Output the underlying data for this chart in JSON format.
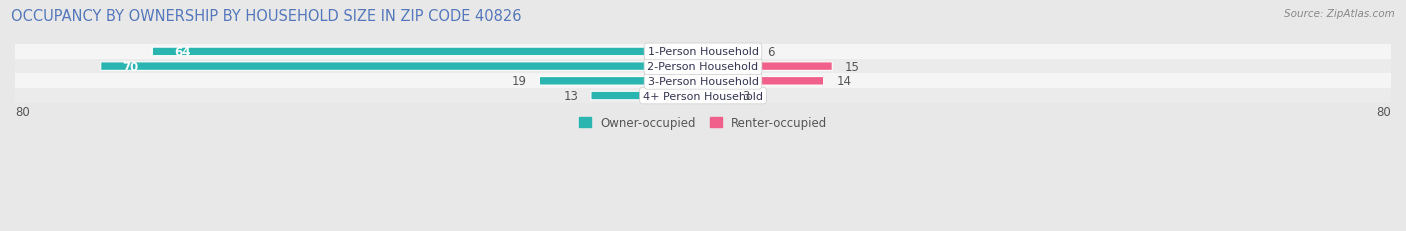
{
  "title": "OCCUPANCY BY OWNERSHIP BY HOUSEHOLD SIZE IN ZIP CODE 40826",
  "source": "Source: ZipAtlas.com",
  "categories": [
    "1-Person Household",
    "2-Person Household",
    "3-Person Household",
    "4+ Person Household"
  ],
  "owner_values": [
    64,
    70,
    19,
    13
  ],
  "renter_values": [
    6,
    15,
    14,
    3
  ],
  "owner_color": "#2bb5b0",
  "renter_color_strong": "#f0608a",
  "renter_color_light": "#f5a8c0",
  "axis_limit": 80,
  "bar_height": 0.52,
  "background_color": "#e8e8e8",
  "row_colors": [
    "#f5f5f5",
    "#e8e8e8"
  ],
  "label_fontsize": 8.5,
  "title_fontsize": 10.5,
  "title_color": "#5577bb",
  "legend_fontsize": 8.5,
  "value_fontsize": 8.5,
  "category_fontsize": 8.0
}
